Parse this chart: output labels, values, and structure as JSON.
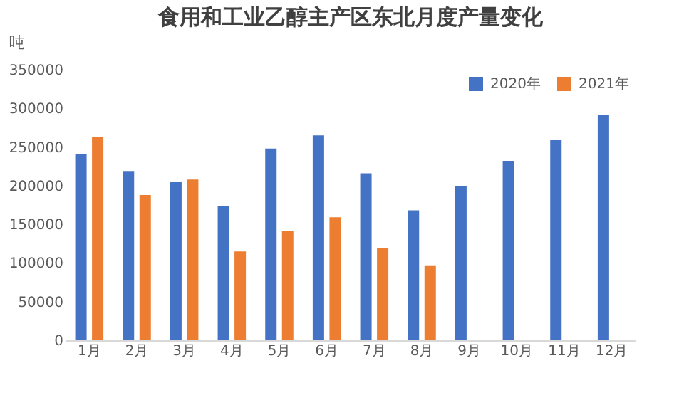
{
  "chart_data": {
    "type": "bar",
    "title": "食用和工业乙醇主产区东北月度产量变化",
    "ylabel": "吨",
    "categories": [
      "1月",
      "2月",
      "3月",
      "4月",
      "5月",
      "6月",
      "7月",
      "8月",
      "9月",
      "10月",
      "11月",
      "12月"
    ],
    "series": [
      {
        "name": "2020年",
        "color": "#4472c4",
        "values": [
          241000,
          219000,
          205000,
          174000,
          248000,
          265000,
          216000,
          168000,
          199000,
          232000,
          259000,
          292000
        ]
      },
      {
        "name": "2021年",
        "color": "#ed7d31",
        "values": [
          263000,
          188000,
          208000,
          115000,
          141000,
          159000,
          119000,
          97000,
          null,
          null,
          null,
          null
        ]
      }
    ],
    "ylim": [
      0,
      350000
    ],
    "yticks": [
      0,
      50000,
      100000,
      150000,
      200000,
      250000,
      300000,
      350000
    ],
    "grid": false,
    "legend": "top right"
  }
}
